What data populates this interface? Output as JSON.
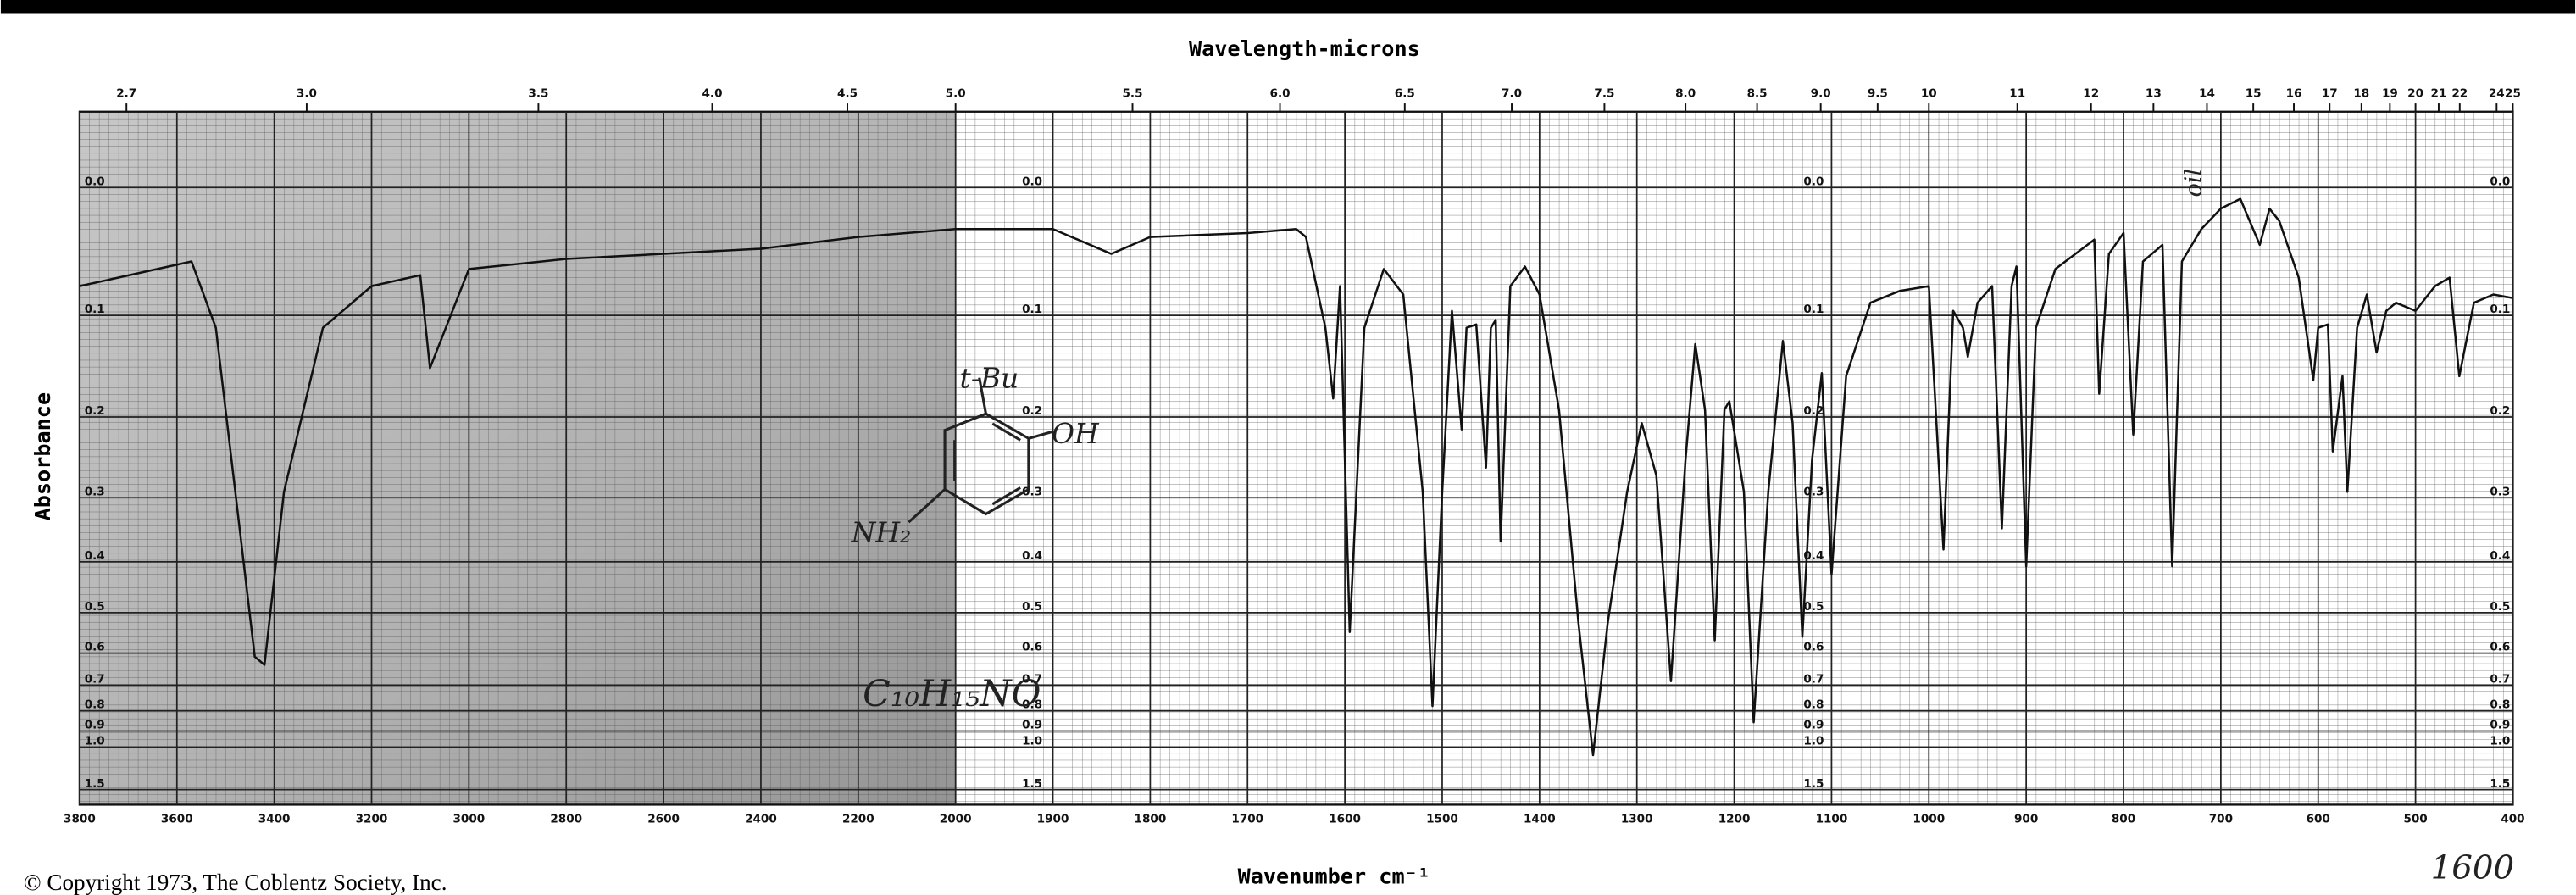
{
  "chart_data": {
    "type": "line",
    "title": "Wavelength-microns",
    "x_label": "Wavenumber cm⁻¹",
    "y_label": "Absorbance",
    "copyright": "© Copyright 1973, The Coblentz Society, Inc.",
    "annotations": [
      "t-Bu",
      "OH",
      "NH₂",
      "C₁₀H₁₅NO",
      "oil",
      "1600"
    ],
    "color": "#111111",
    "y_scale": "transmittance",
    "grid": true,
    "xlim": [
      3800,
      400
    ],
    "xticks": [
      3800,
      3600,
      3400,
      3200,
      3000,
      2800,
      2600,
      2400,
      2200,
      2000,
      1900,
      1800,
      1700,
      1600,
      1500,
      1400,
      1300,
      1200,
      1100,
      1000,
      900,
      800,
      700,
      600,
      500,
      400
    ],
    "top_ticks": [
      2.7,
      {
        "value": 3,
        "label": "3.0"
      },
      3.5,
      {
        "value": 4,
        "label": "4.0"
      },
      4.5,
      {
        "value": 5,
        "label": "5.0"
      },
      5.5,
      {
        "value": 6,
        "label": "6.0"
      },
      6.5,
      {
        "value": 7,
        "label": "7.0"
      },
      7.5,
      {
        "value": 8,
        "label": "8.0"
      },
      8.5,
      {
        "value": 9,
        "label": "9.0"
      },
      9.5,
      10,
      11,
      12,
      13,
      14,
      15,
      16,
      17,
      18,
      19,
      20,
      21,
      22,
      24,
      25
    ],
    "ylim": [
      -0.05,
      2.13
    ],
    "yticks": [
      {
        "value": 0,
        "label": "0.0"
      },
      0.1,
      0.2,
      0.3,
      0.4,
      0.5,
      0.6,
      0.7,
      0.8,
      0.9,
      {
        "value": 1,
        "label": "1.0"
      },
      1.5
    ],
    "x": [
      3800,
      3570,
      3520,
      3480,
      3440,
      3420,
      3380,
      3300,
      3200,
      3100,
      3080,
      3000,
      2800,
      2600,
      2400,
      2200,
      2000,
      1900,
      1840,
      1800,
      1700,
      1650,
      1640,
      1620,
      1612,
      1605,
      1595,
      1580,
      1560,
      1540,
      1520,
      1510,
      1500,
      1490,
      1480,
      1475,
      1465,
      1455,
      1450,
      1445,
      1440,
      1430,
      1415,
      1400,
      1380,
      1360,
      1345,
      1330,
      1310,
      1295,
      1280,
      1265,
      1250,
      1240,
      1230,
      1220,
      1210,
      1205,
      1190,
      1180,
      1165,
      1150,
      1140,
      1130,
      1120,
      1110,
      1100,
      1085,
      1060,
      1030,
      1000,
      985,
      975,
      965,
      960,
      950,
      935,
      925,
      915,
      910,
      900,
      890,
      870,
      830,
      825,
      815,
      800,
      790,
      780,
      760,
      750,
      740,
      720,
      700,
      680,
      660,
      650,
      640,
      620,
      605,
      600,
      590,
      585,
      575,
      570,
      560,
      550,
      540,
      530,
      520,
      500,
      480,
      465,
      455,
      440,
      420,
      400
    ],
    "values": [
      0.075,
      0.055,
      0.111,
      0.292,
      0.61,
      0.634,
      0.292,
      0.111,
      0.075,
      0.066,
      0.149,
      0.061,
      0.053,
      0.049,
      0.045,
      0.036,
      0.03,
      0.03,
      0.049,
      0.036,
      0.033,
      0.03,
      0.036,
      0.111,
      0.18,
      0.075,
      0.545,
      0.111,
      0.061,
      0.082,
      0.292,
      0.78,
      0.292,
      0.096,
      0.214,
      0.111,
      0.108,
      0.26,
      0.111,
      0.104,
      0.366,
      0.075,
      0.059,
      0.082,
      0.192,
      0.524,
      1.06,
      0.524,
      0.292,
      0.207,
      0.27,
      0.686,
      0.25,
      0.126,
      0.192,
      0.566,
      0.192,
      0.183,
      0.292,
      0.854,
      0.292,
      0.123,
      0.207,
      0.557,
      0.25,
      0.154,
      0.423,
      0.157,
      0.089,
      0.079,
      0.075,
      0.379,
      0.096,
      0.111,
      0.138,
      0.089,
      0.075,
      0.345,
      0.075,
      0.059,
      0.408,
      0.111,
      0.061,
      0.038,
      0.175,
      0.049,
      0.033,
      0.22,
      0.055,
      0.042,
      0.408,
      0.055,
      0.03,
      0.015,
      0.008,
      0.042,
      0.015,
      0.024,
      0.068,
      0.161,
      0.111,
      0.108,
      0.24,
      0.157,
      0.292,
      0.111,
      0.082,
      0.134,
      0.096,
      0.089,
      0.096,
      0.075,
      0.068,
      0.157,
      0.089,
      0.082,
      0.085
    ]
  }
}
